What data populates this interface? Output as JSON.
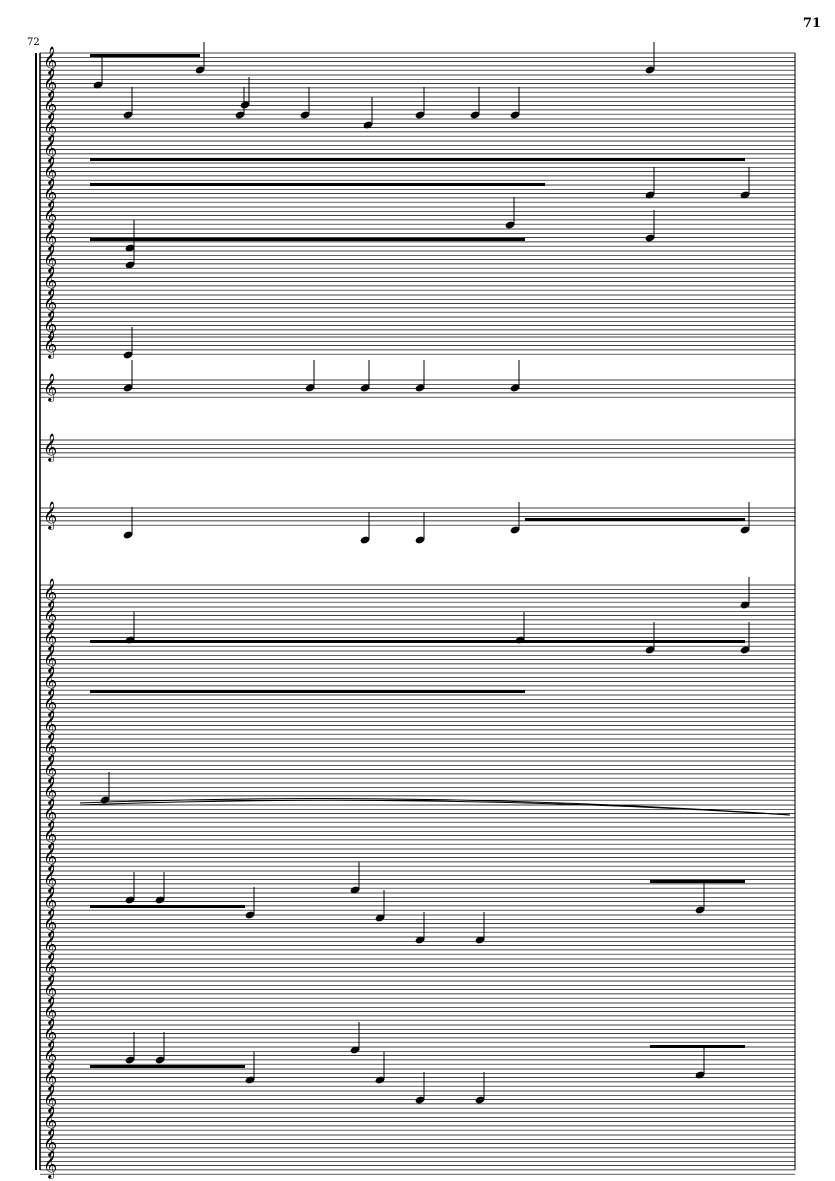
{
  "page": {
    "page_number": "71",
    "measure_number": "72"
  },
  "score": {
    "clef_icon": "treble-clef",
    "ink_color": "#000000"
  }
}
